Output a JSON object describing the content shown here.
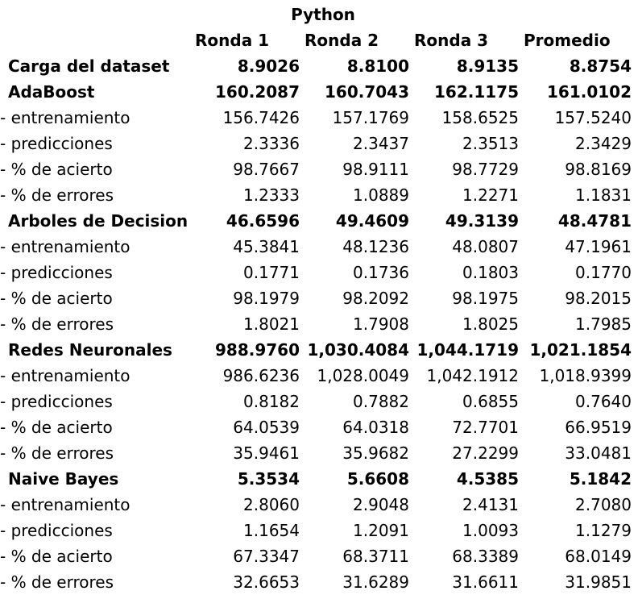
{
  "title": "Python",
  "columns": [
    "Ronda 1",
    "Ronda 2",
    "Ronda 3",
    "Promedio"
  ],
  "rows": [
    {
      "label": "Carga del dataset",
      "bold": true,
      "values": [
        "8.9026",
        "8.8100",
        "8.9135",
        "8.8754"
      ]
    },
    {
      "label": "AdaBoost",
      "bold": true,
      "values": [
        "160.2087",
        "160.7043",
        "162.1175",
        "161.0102"
      ]
    },
    {
      "label": "- entrenamiento",
      "bold": false,
      "values": [
        "156.7426",
        "157.1769",
        "158.6525",
        "157.5240"
      ]
    },
    {
      "label": "- predicciones",
      "bold": false,
      "values": [
        "2.3336",
        "2.3437",
        "2.3513",
        "2.3429"
      ]
    },
    {
      "label": "- % de acierto",
      "bold": false,
      "values": [
        "98.7667",
        "98.9111",
        "98.7729",
        "98.8169"
      ]
    },
    {
      "label": "- % de errores",
      "bold": false,
      "values": [
        "1.2333",
        "1.0889",
        "1.2271",
        "1.1831"
      ]
    },
    {
      "label": "Arboles de Decision",
      "bold": true,
      "values": [
        "46.6596",
        "49.4609",
        "49.3139",
        "48.4781"
      ]
    },
    {
      "label": "- entrenamiento",
      "bold": false,
      "values": [
        "45.3841",
        "48.1236",
        "48.0807",
        "47.1961"
      ]
    },
    {
      "label": "- predicciones",
      "bold": false,
      "values": [
        "0.1771",
        "0.1736",
        "0.1803",
        "0.1770"
      ]
    },
    {
      "label": "- % de acierto",
      "bold": false,
      "values": [
        "98.1979",
        "98.2092",
        "98.1975",
        "98.2015"
      ]
    },
    {
      "label": "- % de errores",
      "bold": false,
      "values": [
        "1.8021",
        "1.7908",
        "1.8025",
        "1.7985"
      ]
    },
    {
      "label": "Redes Neuronales",
      "bold": true,
      "values": [
        "988.9760",
        "1,030.4084",
        "1,044.1719",
        "1,021.1854"
      ]
    },
    {
      "label": "- entrenamiento",
      "bold": false,
      "values": [
        "986.6236",
        "1,028.0049",
        "1,042.1912",
        "1,018.9399"
      ]
    },
    {
      "label": "- predicciones",
      "bold": false,
      "values": [
        "0.8182",
        "0.7882",
        "0.6855",
        "0.7640"
      ]
    },
    {
      "label": "- % de acierto",
      "bold": false,
      "values": [
        "64.0539",
        "64.0318",
        "72.7701",
        "66.9519"
      ]
    },
    {
      "label": "- % de errores",
      "bold": false,
      "values": [
        "35.9461",
        "35.9682",
        "27.2299",
        "33.0481"
      ]
    },
    {
      "label": "Naive Bayes",
      "bold": true,
      "values": [
        "5.3534",
        "5.6608",
        "4.5385",
        "5.1842"
      ]
    },
    {
      "label": "- entrenamiento",
      "bold": false,
      "values": [
        "2.8060",
        "2.9048",
        "2.4131",
        "2.7080"
      ]
    },
    {
      "label": "- predicciones",
      "bold": false,
      "values": [
        "1.1654",
        "1.2091",
        "1.0093",
        "1.1279"
      ]
    },
    {
      "label": "- % de acierto",
      "bold": false,
      "values": [
        "67.3347",
        "68.3711",
        "68.3389",
        "68.0149"
      ]
    },
    {
      "label": "- % de errores",
      "bold": false,
      "values": [
        "32.6653",
        "31.6289",
        "31.6611",
        "31.9851"
      ]
    }
  ]
}
